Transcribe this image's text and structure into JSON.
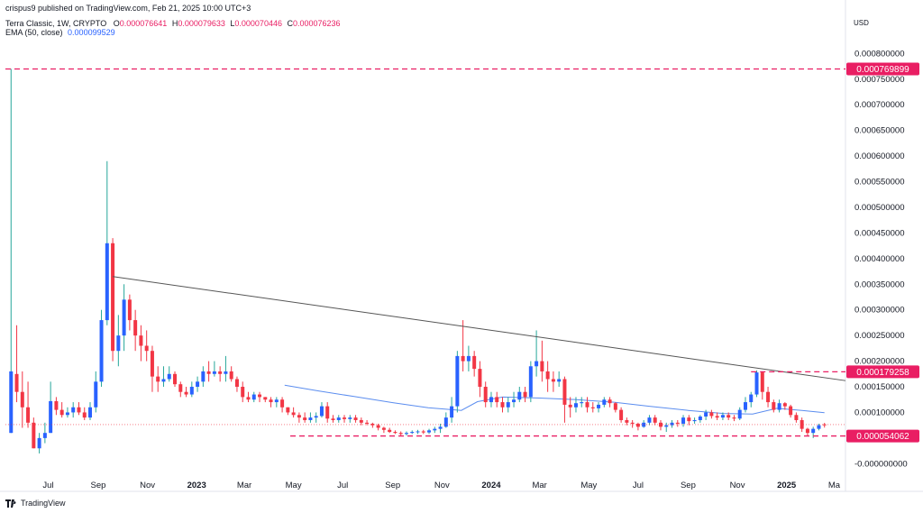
{
  "header": {
    "published": "crispus9 published on TradingView.com, Feb 21, 2025 10:00 UTC+3",
    "symbol": "Terra Classic, 1W, CRYPTO",
    "o_label": "O",
    "o": "0.000076641",
    "h_label": "H",
    "h": "0.000079633",
    "l_label": "L",
    "l": "0.000070446",
    "c_label": "C",
    "c": "0.000076236",
    "ema_label": "EMA (50, close)",
    "ema": "0.000099529"
  },
  "currency": "USD",
  "watermark": "TradingView",
  "colors": {
    "up": "#2962ff",
    "down": "#f23645",
    "wick_up": "#26a69a",
    "ema": "#5b8def",
    "trendline": "#555555",
    "level": "#e91e63"
  },
  "chart_data": {
    "type": "candlestick",
    "y_tick_labels": [
      "0.000800000",
      "0.000750000",
      "0.000700000",
      "0.000650000",
      "0.000600000",
      "0.000550000",
      "0.000500000",
      "0.000450000",
      "0.000400000",
      "0.000350000",
      "0.000300000",
      "0.000250000",
      "0.000200000",
      "0.000150000",
      "0.000100000",
      "0.000050000",
      "-0.000000000"
    ],
    "y_ticks": [
      0.0008,
      0.00075,
      0.0007,
      0.00065,
      0.0006,
      0.00055,
      0.0005,
      0.00045,
      0.0004,
      0.00035,
      0.0003,
      0.00025,
      0.0002,
      0.00015,
      0.0001,
      5e-05,
      0
    ],
    "ylim": [
      -1e-05,
      0.00082
    ],
    "x_tick_labels": [
      "Jul",
      "Sep",
      "Nov",
      "2023",
      "Mar",
      "May",
      "Jul",
      "Sep",
      "Nov",
      "2024",
      "Mar",
      "May",
      "Jul",
      "Sep",
      "Nov",
      "2025",
      "Ma"
    ],
    "x_ticks": [
      "2022-07-01",
      "2022-09-01",
      "2022-11-01",
      "2023-01-01",
      "2023-03-01",
      "2023-05-01",
      "2023-07-01",
      "2023-09-01",
      "2023-11-01",
      "2024-01-01",
      "2024-03-01",
      "2024-05-01",
      "2024-07-01",
      "2024-09-01",
      "2024-11-01",
      "2025-01-01",
      "2025-03-01"
    ],
    "x_bold": [
      "2023",
      "2024",
      "2025"
    ],
    "xlim": [
      "2022-05-09",
      "2025-03-15"
    ],
    "levels": [
      {
        "value": 0.000769899,
        "label": "0.000769899",
        "start": "2022-05-09"
      },
      {
        "value": 0.000179258,
        "label": "0.000179258",
        "start": "2024-11-18"
      },
      {
        "value": 5.4062e-05,
        "label": "0.000054062",
        "start": "2023-04-27"
      }
    ],
    "trendline": {
      "from": [
        "2022-09-19",
        0.000365
      ],
      "to": [
        "2025-03-15",
        0.000162
      ]
    },
    "ema_series": [
      [
        "2023-04-20",
        0.000153
      ],
      [
        "2023-06-01",
        0.000142
      ],
      [
        "2023-07-15",
        0.000131
      ],
      [
        "2023-09-01",
        0.000119
      ],
      [
        "2023-10-15",
        0.000109
      ],
      [
        "2023-11-25",
        0.000104
      ],
      [
        "2023-12-15",
        0.000121
      ],
      [
        "2024-01-15",
        0.00013
      ],
      [
        "2024-03-01",
        0.000128
      ],
      [
        "2024-04-15",
        0.000125
      ],
      [
        "2024-06-01",
        0.00012
      ],
      [
        "2024-07-15",
        0.000112
      ],
      [
        "2024-09-01",
        0.000104
      ],
      [
        "2024-10-15",
        9.8e-05
      ],
      [
        "2024-11-20",
        9.7e-05
      ],
      [
        "2024-12-20",
        0.000108
      ],
      [
        "2025-01-20",
        0.000104
      ],
      [
        "2025-02-17",
        9.9529e-05
      ]
    ],
    "candles": [
      [
        "2022-05-16",
        6e-05,
        0.00018,
        6e-05,
        0.00077
      ],
      [
        "2022-05-23",
        0.000175,
        0.00014,
        0.00012,
        0.00027
      ],
      [
        "2022-05-30",
        0.00014,
        0.00011,
        7e-05,
        0.00018
      ],
      [
        "2022-06-06",
        0.00011,
        8e-05,
        7e-05,
        0.00016
      ],
      [
        "2022-06-13",
        8e-05,
        3e-05,
        3e-05,
        9e-05
      ],
      [
        "2022-06-20",
        3e-05,
        5e-05,
        2e-05,
        6e-05
      ],
      [
        "2022-06-27",
        5e-05,
        6e-05,
        4e-05,
        8e-05
      ],
      [
        "2022-07-04",
        6e-05,
        0.000122,
        6e-05,
        0.00016
      ],
      [
        "2022-07-11",
        0.000122,
        0.000105,
        9.5e-05,
        0.00013
      ],
      [
        "2022-07-18",
        0.000105,
        9.5e-05,
        9e-05,
        0.00012
      ],
      [
        "2022-07-25",
        9.5e-05,
        0.0001,
        9e-05,
        0.00011
      ],
      [
        "2022-08-01",
        0.0001,
        0.00011,
        9e-05,
        0.00012
      ],
      [
        "2022-08-08",
        0.00011,
        0.0001,
        9.5e-05,
        0.00012
      ],
      [
        "2022-08-15",
        0.0001,
        9e-05,
        8.5e-05,
        0.00011
      ],
      [
        "2022-08-22",
        9e-05,
        0.00011,
        8.5e-05,
        0.00012
      ],
      [
        "2022-08-29",
        0.00011,
        0.00016,
        0.0001,
        0.00018
      ],
      [
        "2022-09-05",
        0.00016,
        0.00028,
        0.00015,
        0.0003
      ],
      [
        "2022-09-12",
        0.00028,
        0.00043,
        0.00027,
        0.00059
      ],
      [
        "2022-09-19",
        0.00043,
        0.00022,
        0.0002,
        0.00044
      ],
      [
        "2022-09-26",
        0.00022,
        0.00025,
        0.00019,
        0.00029
      ],
      [
        "2022-10-03",
        0.00025,
        0.00032,
        0.00022,
        0.00035
      ],
      [
        "2022-10-10",
        0.00032,
        0.00028,
        0.00026,
        0.00033
      ],
      [
        "2022-10-17",
        0.00028,
        0.00025,
        0.00022,
        0.0003
      ],
      [
        "2022-10-24",
        0.00025,
        0.00023,
        0.0002,
        0.00027
      ],
      [
        "2022-10-31",
        0.00023,
        0.00022,
        0.0002,
        0.00026
      ],
      [
        "2022-11-07",
        0.00022,
        0.00017,
        0.00014,
        0.00023
      ],
      [
        "2022-11-14",
        0.00017,
        0.00016,
        0.00014,
        0.00019
      ],
      [
        "2022-11-21",
        0.00016,
        0.000165,
        0.00015,
        0.00019
      ],
      [
        "2022-11-28",
        0.000165,
        0.000175,
        0.00016,
        0.00019
      ],
      [
        "2022-12-05",
        0.000175,
        0.000155,
        0.00015,
        0.00018
      ],
      [
        "2022-12-12",
        0.000155,
        0.00014,
        0.00013,
        0.00016
      ],
      [
        "2022-12-19",
        0.00014,
        0.000135,
        0.00013,
        0.00015
      ],
      [
        "2022-12-26",
        0.000135,
        0.00015,
        0.00013,
        0.00016
      ],
      [
        "2023-01-02",
        0.00015,
        0.00016,
        0.00014,
        0.00017
      ],
      [
        "2023-01-09",
        0.00016,
        0.00018,
        0.00015,
        0.00019
      ],
      [
        "2023-01-16",
        0.00018,
        0.000175,
        0.00016,
        0.0002
      ],
      [
        "2023-01-23",
        0.000175,
        0.00018,
        0.00017,
        0.0002
      ],
      [
        "2023-01-30",
        0.00018,
        0.000175,
        0.00016,
        0.00019
      ],
      [
        "2023-02-06",
        0.000175,
        0.00018,
        0.00016,
        0.00021
      ],
      [
        "2023-02-13",
        0.00018,
        0.000165,
        0.00016,
        0.00019
      ],
      [
        "2023-02-20",
        0.000165,
        0.00015,
        0.00014,
        0.00017
      ],
      [
        "2023-02-27",
        0.00015,
        0.00013,
        0.00012,
        0.00016
      ],
      [
        "2023-03-06",
        0.00013,
        0.000125,
        0.00012,
        0.00014
      ],
      [
        "2023-03-13",
        0.000125,
        0.000135,
        0.00012,
        0.00014
      ],
      [
        "2023-03-20",
        0.000135,
        0.00013,
        0.00012,
        0.00014
      ],
      [
        "2023-03-27",
        0.00013,
        0.000125,
        0.00012,
        0.00013
      ],
      [
        "2023-04-03",
        0.000125,
        0.00012,
        0.00011,
        0.00013
      ],
      [
        "2023-04-10",
        0.00012,
        0.000125,
        0.00011,
        0.00013
      ],
      [
        "2023-04-17",
        0.000125,
        0.00011,
        0.0001,
        0.00013
      ],
      [
        "2023-04-24",
        0.00011,
        0.0001,
        9.5e-05,
        0.00011
      ],
      [
        "2023-05-01",
        0.0001,
        9.5e-05,
        9e-05,
        0.00011
      ],
      [
        "2023-05-08",
        9.5e-05,
        9e-05,
        8e-05,
        0.0001
      ],
      [
        "2023-05-15",
        9e-05,
        8.5e-05,
        8e-05,
        0.0001
      ],
      [
        "2023-05-22",
        8.5e-05,
        9e-05,
        8e-05,
        0.0001
      ],
      [
        "2023-05-29",
        9e-05,
        9.3e-05,
        8e-05,
        0.0001
      ],
      [
        "2023-06-05",
        9.3e-05,
        0.000112,
        9e-05,
        0.00012
      ],
      [
        "2023-06-12",
        0.000112,
        8.8e-05,
        8e-05,
        0.00012
      ],
      [
        "2023-06-19",
        8.8e-05,
        8.5e-05,
        8e-05,
        9.5e-05
      ],
      [
        "2023-06-26",
        8.5e-05,
        9e-05,
        8e-05,
        9.5e-05
      ],
      [
        "2023-07-03",
        9e-05,
        8.7e-05,
        8e-05,
        9.5e-05
      ],
      [
        "2023-07-10",
        8.7e-05,
        9e-05,
        8e-05,
        9.5e-05
      ],
      [
        "2023-07-17",
        9e-05,
        8.5e-05,
        8e-05,
        9.5e-05
      ],
      [
        "2023-07-24",
        8.5e-05,
        8e-05,
        7.5e-05,
        9e-05
      ],
      [
        "2023-07-31",
        8e-05,
        7.8e-05,
        7.5e-05,
        8.5e-05
      ],
      [
        "2023-08-07",
        7.8e-05,
        7.5e-05,
        7e-05,
        8e-05
      ],
      [
        "2023-08-14",
        7.5e-05,
        7e-05,
        6.5e-05,
        7.8e-05
      ],
      [
        "2023-08-21",
        7e-05,
        6.6e-05,
        6e-05,
        7.2e-05
      ],
      [
        "2023-08-28",
        6.6e-05,
        6.2e-05,
        6e-05,
        7e-05
      ],
      [
        "2023-09-04",
        6.2e-05,
        6e-05,
        5.8e-05,
        6.5e-05
      ],
      [
        "2023-09-11",
        6e-05,
        5.8e-05,
        5.5e-05,
        6.3e-05
      ],
      [
        "2023-09-18",
        5.8e-05,
        6e-05,
        5.5e-05,
        6.3e-05
      ],
      [
        "2023-09-25",
        6e-05,
        6.2e-05,
        5.8e-05,
        6.5e-05
      ],
      [
        "2023-10-02",
        6.2e-05,
        6.3e-05,
        5.8e-05,
        6.6e-05
      ],
      [
        "2023-10-09",
        6.3e-05,
        6.1e-05,
        5.8e-05,
        6.6e-05
      ],
      [
        "2023-10-16",
        6.1e-05,
        6.5e-05,
        5.8e-05,
        6.8e-05
      ],
      [
        "2023-10-23",
        6.5e-05,
        6.8e-05,
        6e-05,
        7.2e-05
      ],
      [
        "2023-10-30",
        6.8e-05,
        7.2e-05,
        6e-05,
        7.8e-05
      ],
      [
        "2023-11-06",
        7.2e-05,
        9e-05,
        7e-05,
        0.0001
      ],
      [
        "2023-11-13",
        9e-05,
        0.000112,
        8e-05,
        0.00013
      ],
      [
        "2023-11-20",
        0.000112,
        0.00021,
        0.0001,
        0.00022
      ],
      [
        "2023-11-27",
        0.00021,
        0.0002,
        0.00018,
        0.00028
      ],
      [
        "2023-12-04",
        0.0002,
        0.00021,
        0.00018,
        0.00023
      ],
      [
        "2023-12-11",
        0.00021,
        0.000185,
        0.00017,
        0.00022
      ],
      [
        "2023-12-18",
        0.000185,
        0.00015,
        0.00013,
        0.0002
      ],
      [
        "2023-12-25",
        0.00015,
        0.00012,
        0.00011,
        0.00016
      ],
      [
        "2024-01-01",
        0.00012,
        0.00013,
        0.00011,
        0.00014
      ],
      [
        "2024-01-08",
        0.00013,
        0.00012,
        0.00011,
        0.00014
      ],
      [
        "2024-01-15",
        0.00012,
        0.00011,
        0.0001,
        0.00013
      ],
      [
        "2024-01-22",
        0.00011,
        0.00012,
        0.0001,
        0.00013
      ],
      [
        "2024-01-29",
        0.00012,
        0.000125,
        0.00011,
        0.00014
      ],
      [
        "2024-02-05",
        0.000125,
        0.00014,
        0.00012,
        0.00015
      ],
      [
        "2024-02-12",
        0.00014,
        0.00013,
        0.00012,
        0.00015
      ],
      [
        "2024-02-19",
        0.00013,
        0.00019,
        0.00012,
        0.0002
      ],
      [
        "2024-02-26",
        0.00019,
        0.0002,
        0.00017,
        0.00026
      ],
      [
        "2024-03-04",
        0.0002,
        0.00018,
        0.00016,
        0.00024
      ],
      [
        "2024-03-11",
        0.00018,
        0.000165,
        0.00014,
        0.0002
      ],
      [
        "2024-03-18",
        0.000165,
        0.00016,
        0.00014,
        0.00018
      ],
      [
        "2024-03-25",
        0.00016,
        0.000165,
        0.00015,
        0.00018
      ],
      [
        "2024-04-01",
        0.000165,
        0.000115,
        8e-05,
        0.00017
      ],
      [
        "2024-04-08",
        0.000115,
        0.00011,
        9e-05,
        0.00013
      ],
      [
        "2024-04-15",
        0.00011,
        0.000118,
        0.0001,
        0.00013
      ],
      [
        "2024-04-22",
        0.000118,
        0.00012,
        0.00011,
        0.00013
      ],
      [
        "2024-04-29",
        0.00012,
        0.00011,
        0.0001,
        0.00013
      ],
      [
        "2024-05-06",
        0.00011,
        0.000108,
        0.0001,
        0.00012
      ],
      [
        "2024-05-13",
        0.000108,
        0.000115,
        0.0001,
        0.00012
      ],
      [
        "2024-05-20",
        0.000115,
        0.000125,
        0.00011,
        0.00013
      ],
      [
        "2024-05-27",
        0.000125,
        0.000118,
        0.00011,
        0.00013
      ],
      [
        "2024-06-03",
        0.000118,
        0.000105,
        0.0001,
        0.00012
      ],
      [
        "2024-06-10",
        0.000105,
        8.5e-05,
        8e-05,
        0.00011
      ],
      [
        "2024-06-17",
        8.5e-05,
        8e-05,
        7.5e-05,
        9e-05
      ],
      [
        "2024-06-24",
        8e-05,
        7.8e-05,
        7e-05,
        8.5e-05
      ],
      [
        "2024-07-01",
        7.8e-05,
        7.2e-05,
        6.5e-05,
        8e-05
      ],
      [
        "2024-07-08",
        7.2e-05,
        8e-05,
        7e-05,
        8.5e-05
      ],
      [
        "2024-07-15",
        8e-05,
        9e-05,
        7.5e-05,
        9.5e-05
      ],
      [
        "2024-07-22",
        9e-05,
        8e-05,
        7.5e-05,
        9.5e-05
      ],
      [
        "2024-07-29",
        8e-05,
        7.2e-05,
        6.5e-05,
        8.5e-05
      ],
      [
        "2024-08-05",
        7.2e-05,
        7.5e-05,
        6.2e-05,
        8e-05
      ],
      [
        "2024-08-12",
        7.5e-05,
        8e-05,
        7e-05,
        8.5e-05
      ],
      [
        "2024-08-19",
        8e-05,
        7.8e-05,
        7.2e-05,
        8.5e-05
      ],
      [
        "2024-08-26",
        7.8e-05,
        9e-05,
        7.2e-05,
        9.5e-05
      ],
      [
        "2024-09-02",
        9e-05,
        8.3e-05,
        7.5e-05,
        9.5e-05
      ],
      [
        "2024-09-09",
        8.3e-05,
        8.5e-05,
        7.8e-05,
        9e-05
      ],
      [
        "2024-09-16",
        8.5e-05,
        9.2e-05,
        8e-05,
        9.5e-05
      ],
      [
        "2024-09-23",
        9.2e-05,
        0.0001,
        8.5e-05,
        0.000105
      ],
      [
        "2024-09-30",
        0.0001,
        9.3e-05,
        8.8e-05,
        0.000105
      ],
      [
        "2024-10-07",
        9.3e-05,
        9e-05,
        8.5e-05,
        0.0001
      ],
      [
        "2024-10-14",
        9e-05,
        9.5e-05,
        8.5e-05,
        0.0001
      ],
      [
        "2024-10-21",
        9.5e-05,
        9e-05,
        8.5e-05,
        0.0001
      ],
      [
        "2024-10-28",
        9e-05,
        8.8e-05,
        8.3e-05,
        9.5e-05
      ],
      [
        "2024-11-04",
        8.8e-05,
        0.000105,
        8.5e-05,
        0.00011
      ],
      [
        "2024-11-11",
        0.000105,
        0.00012,
        0.0001,
        0.00013
      ],
      [
        "2024-11-18",
        0.00012,
        0.000135,
        0.00011,
        0.00014
      ],
      [
        "2024-11-25",
        0.000135,
        0.000178,
        0.00013,
        0.000182
      ],
      [
        "2024-12-02",
        0.000178,
        0.00014,
        0.000125,
        0.00018
      ],
      [
        "2024-12-09",
        0.00014,
        0.00012,
        0.00011,
        0.00015
      ],
      [
        "2024-12-16",
        0.00012,
        0.000105,
        0.0001,
        0.000125
      ],
      [
        "2024-12-23",
        0.000105,
        0.000118,
        0.0001,
        0.000125
      ],
      [
        "2024-12-30",
        0.000118,
        0.000112,
        0.000105,
        0.00012
      ],
      [
        "2025-01-06",
        0.000112,
        9.5e-05,
        9e-05,
        0.000115
      ],
      [
        "2025-01-13",
        9.5e-05,
        8.5e-05,
        8e-05,
        0.0001
      ],
      [
        "2025-01-20",
        8.5e-05,
        6.8e-05,
        6.2e-05,
        9e-05
      ],
      [
        "2025-01-27",
        6.8e-05,
        6e-05,
        5.5e-05,
        7e-05
      ],
      [
        "2025-02-03",
        6e-05,
        6.8e-05,
        5e-05,
        7.2e-05
      ],
      [
        "2025-02-10",
        6.8e-05,
        7.5e-05,
        6.5e-05,
        7.8e-05
      ],
      [
        "2025-02-17",
        7.6641e-05,
        7.6236e-05,
        7.0446e-05,
        7.9633e-05
      ]
    ]
  }
}
